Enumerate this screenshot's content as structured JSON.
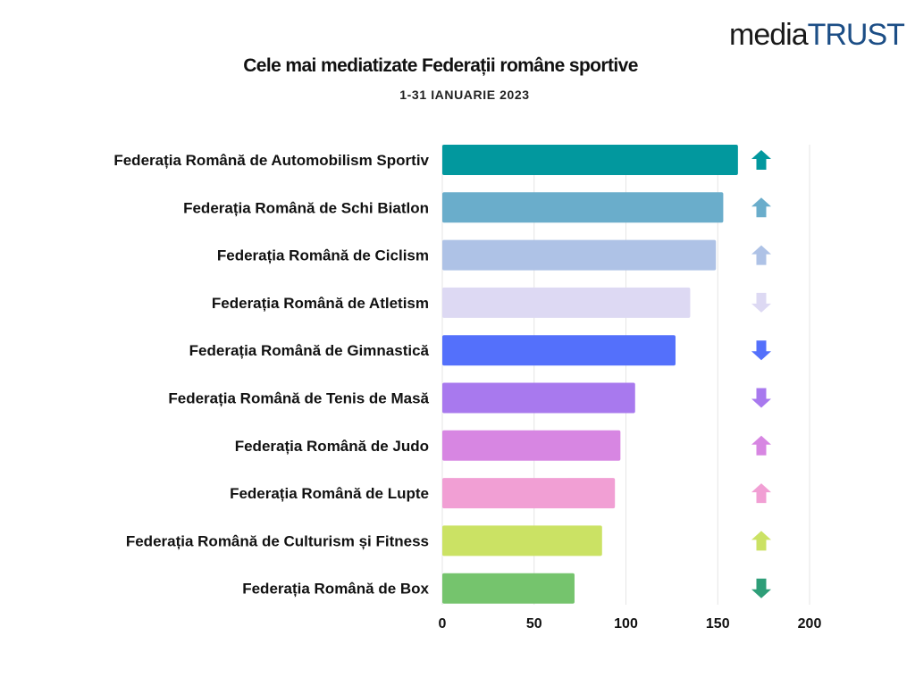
{
  "logo": {
    "part1": "media",
    "part2": "TRUST"
  },
  "chart_data": {
    "type": "bar",
    "orientation": "horizontal",
    "title": "Cele mai mediatizate Federații române sportive",
    "subtitle": "1-31 IANUARIE 2023",
    "xlim": [
      0,
      200
    ],
    "xticks": [
      0,
      50,
      100,
      150,
      200
    ],
    "grid": true,
    "categories": [
      "Federația Română de Automobilism Sportiv",
      "Federația Română de Schi Biatlon",
      "Federația Română de Ciclism",
      "Federația Română de Atletism",
      "Federația Română de Gimnastică",
      "Federația Română de Tenis de Masă",
      "Federația Română de Judo",
      "Federația Română de Lupte",
      "Federația Română de Culturism și Fitness",
      "Federația Română de Box"
    ],
    "values": [
      161,
      153,
      149,
      135,
      127,
      105,
      97,
      94,
      87,
      72
    ],
    "colors": [
      "#02989e",
      "#6aadcb",
      "#aec2e6",
      "#ddd9f3",
      "#5470fb",
      "#a879ee",
      "#d786e2",
      "#f19fd4",
      "#cbe264",
      "#75c46d"
    ],
    "trend": [
      "up",
      "up",
      "up",
      "down",
      "down",
      "down",
      "up",
      "up",
      "up",
      "down"
    ],
    "trend_colors": [
      "#02989e",
      "#6aadcb",
      "#aec2e6",
      "#ddd9f3",
      "#5470fb",
      "#a879ee",
      "#d786e2",
      "#f19fd4",
      "#cbe264",
      "#2e9e78"
    ]
  }
}
